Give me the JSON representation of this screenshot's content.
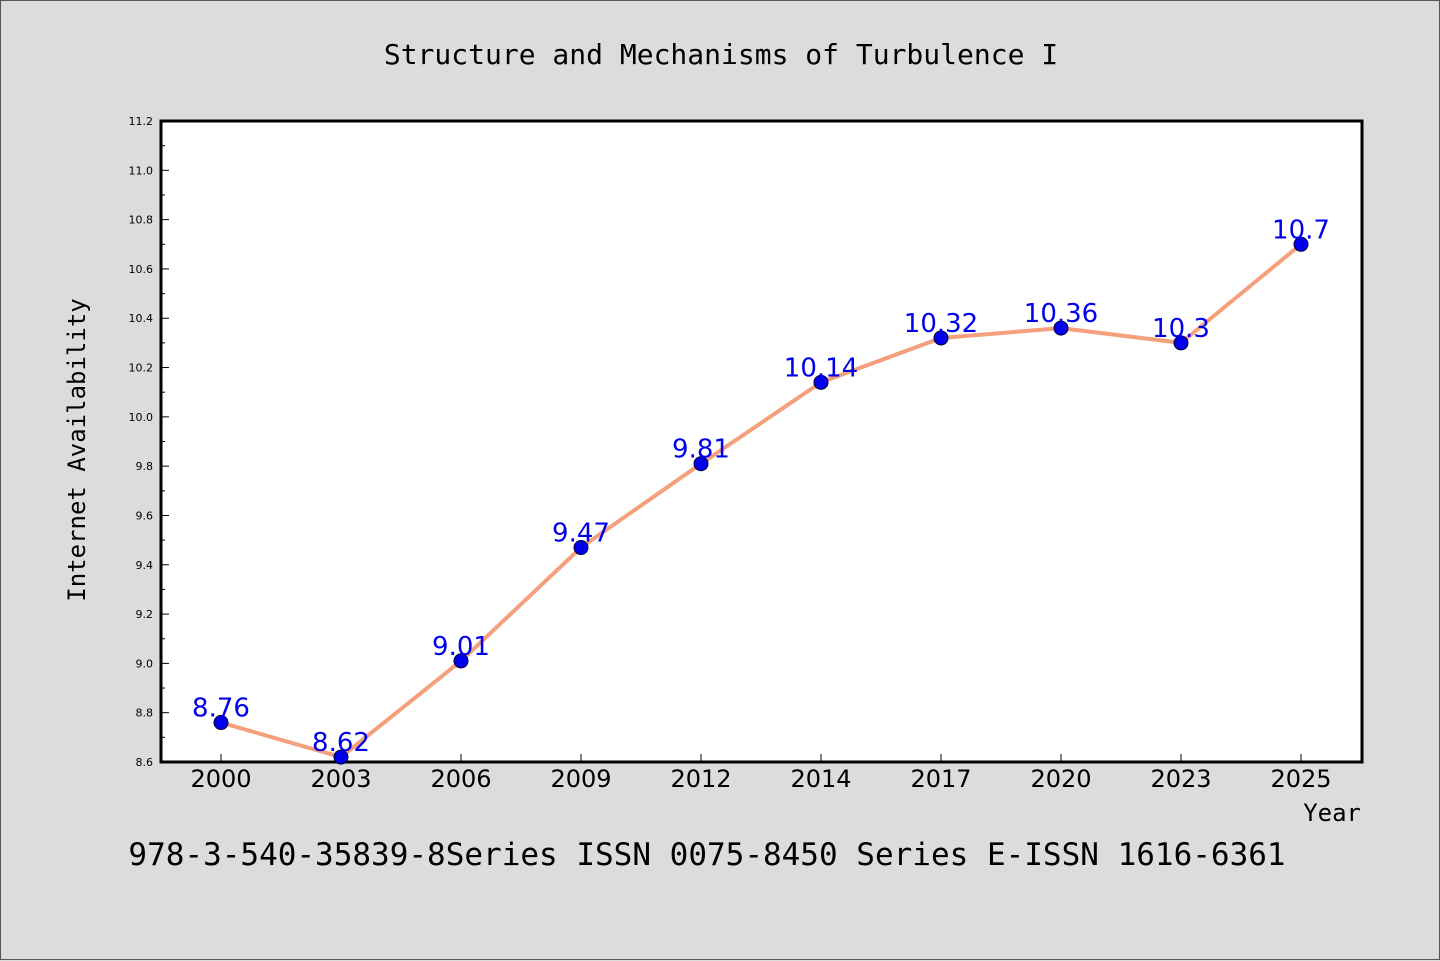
{
  "chart_data": {
    "type": "line",
    "title": "Structure and Mechanisms of Turbulence I",
    "xlabel": "Year",
    "ylabel": "Internet Availability",
    "categories": [
      "2000",
      "2003",
      "2006",
      "2009",
      "2012",
      "2014",
      "2017",
      "2020",
      "2023",
      "2025"
    ],
    "series": [
      {
        "values": [
          8.76,
          8.62,
          9.01,
          9.47,
          9.81,
          10.14,
          10.32,
          10.36,
          10.3,
          10.7
        ],
        "data_labels": [
          "8.76",
          "8.62",
          "9.01",
          "9.47",
          "9.81",
          "10.14",
          "10.32",
          "10.36",
          "10.3",
          "10.7"
        ],
        "line_color": "#f4a07c",
        "marker_color": "#0000ee",
        "label_color": "#0000ee"
      }
    ],
    "ylim": [
      8.6,
      11.2
    ],
    "yticks": [
      "8.6",
      "8.8",
      "9.0",
      "9.2",
      "9.4",
      "9.6",
      "9.8",
      "10.0",
      "10.2",
      "10.4",
      "10.6",
      "10.8",
      "11.0",
      "11.2"
    ],
    "grid": false,
    "legend": "none"
  },
  "footer": "978-3-540-35839-8Series ISSN 0075-8450 Series E-ISSN 1616-6361",
  "colors": {
    "background": "#dcdcdc",
    "plot_background": "#ffffff",
    "axis": "#000000"
  }
}
